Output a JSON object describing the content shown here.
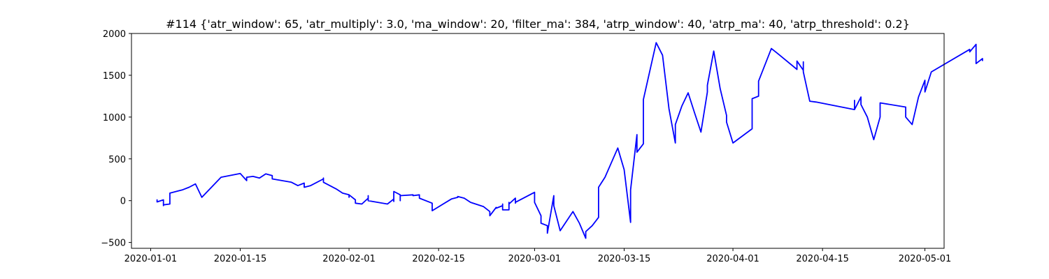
{
  "chart_data": {
    "type": "line",
    "title": "#114 {'atr_window': 65, 'atr_multiply': 3.0, 'ma_window': 20, 'filter_ma': 384, 'atrp_window': 40, 'atrp_ma': 40, 'atrp_threshold': 0.2}",
    "xlabel": "",
    "ylabel": "",
    "x_type": "date",
    "xlim": [
      "2019-12-29",
      "2020-05-04"
    ],
    "ylim": [
      -570,
      2000
    ],
    "x_ticks": [
      "2020-01-01",
      "2020-01-15",
      "2020-02-01",
      "2020-02-15",
      "2020-03-01",
      "2020-03-15",
      "2020-04-01",
      "2020-04-15",
      "2020-05-01"
    ],
    "y_ticks": [
      -500,
      0,
      500,
      1000,
      1500,
      2000
    ],
    "grid": false,
    "series": [
      {
        "color": "#0000ff",
        "points": [
          [
            "2020-01-02",
            0
          ],
          [
            "2020-01-02",
            10
          ],
          [
            "2020-01-02",
            -15
          ],
          [
            "2020-01-03",
            10
          ],
          [
            "2020-01-03",
            -60
          ],
          [
            "2020-01-03",
            -20
          ],
          [
            "2020-01-03",
            -50
          ],
          [
            "2020-01-04",
            -40
          ],
          [
            "2020-01-04",
            90
          ],
          [
            "2020-01-06",
            130
          ],
          [
            "2020-01-07",
            160
          ],
          [
            "2020-01-08",
            200
          ],
          [
            "2020-01-09",
            40
          ],
          [
            "2020-01-12",
            280
          ],
          [
            "2020-01-15",
            325
          ],
          [
            "2020-01-16",
            240
          ],
          [
            "2020-01-16",
            280
          ],
          [
            "2020-01-17",
            290
          ],
          [
            "2020-01-18",
            270
          ],
          [
            "2020-01-19",
            320
          ],
          [
            "2020-01-20",
            300
          ],
          [
            "2020-01-20",
            260
          ],
          [
            "2020-01-23",
            220
          ],
          [
            "2020-01-24",
            180
          ],
          [
            "2020-01-25",
            210
          ],
          [
            "2020-01-25",
            160
          ],
          [
            "2020-01-26",
            180
          ],
          [
            "2020-01-28",
            260
          ],
          [
            "2020-01-28",
            270
          ],
          [
            "2020-01-28",
            220
          ],
          [
            "2020-01-30",
            140
          ],
          [
            "2020-01-31",
            90
          ],
          [
            "2020-01-31",
            90
          ],
          [
            "2020-02-01",
            70
          ],
          [
            "2020-02-01",
            40
          ],
          [
            "2020-02-01",
            70
          ],
          [
            "2020-02-02",
            10
          ],
          [
            "2020-02-02",
            -30
          ],
          [
            "2020-02-03",
            -40
          ],
          [
            "2020-02-03",
            -40
          ],
          [
            "2020-02-04",
            30
          ],
          [
            "2020-02-04",
            60
          ],
          [
            "2020-02-04",
            0
          ],
          [
            "2020-02-07",
            -40
          ],
          [
            "2020-02-08",
            20
          ],
          [
            "2020-02-08",
            -10
          ],
          [
            "2020-02-08",
            110
          ],
          [
            "2020-02-09",
            70
          ],
          [
            "2020-02-09",
            20
          ],
          [
            "2020-02-09",
            0
          ],
          [
            "2020-02-09",
            60
          ],
          [
            "2020-02-11",
            70
          ],
          [
            "2020-02-11",
            60
          ],
          [
            "2020-02-12",
            70
          ],
          [
            "2020-02-12",
            30
          ],
          [
            "2020-02-14",
            -30
          ],
          [
            "2020-02-14",
            -120
          ],
          [
            "2020-02-17",
            20
          ],
          [
            "2020-02-18",
            40
          ],
          [
            "2020-02-18",
            50
          ],
          [
            "2020-02-19",
            30
          ],
          [
            "2020-02-20",
            -20
          ],
          [
            "2020-02-22",
            -70
          ],
          [
            "2020-02-23",
            -130
          ],
          [
            "2020-02-23",
            -180
          ],
          [
            "2020-02-24",
            -80
          ],
          [
            "2020-02-24",
            -90
          ],
          [
            "2020-02-25",
            -60
          ],
          [
            "2020-02-25",
            -40
          ],
          [
            "2020-02-25",
            -110
          ],
          [
            "2020-02-26",
            -110
          ],
          [
            "2020-02-26",
            -20
          ],
          [
            "2020-02-26",
            -40
          ],
          [
            "2020-02-27",
            30
          ],
          [
            "2020-02-27",
            -30
          ],
          [
            "2020-02-27",
            -20
          ],
          [
            "2020-03-01",
            100
          ],
          [
            "2020-03-01",
            0
          ],
          [
            "2020-03-01",
            -20
          ],
          [
            "2020-03-02",
            -180
          ],
          [
            "2020-03-02",
            -220
          ],
          [
            "2020-03-02",
            -270
          ],
          [
            "2020-03-03",
            -300
          ],
          [
            "2020-03-03",
            -390
          ],
          [
            "2020-03-04",
            60
          ],
          [
            "2020-03-04",
            -60
          ],
          [
            "2020-03-05",
            -360
          ],
          [
            "2020-03-07",
            -130
          ],
          [
            "2020-03-08",
            -270
          ],
          [
            "2020-03-09",
            -450
          ],
          [
            "2020-03-09",
            -370
          ],
          [
            "2020-03-10",
            -300
          ],
          [
            "2020-03-11",
            -200
          ],
          [
            "2020-03-11",
            160
          ],
          [
            "2020-03-12",
            280
          ],
          [
            "2020-03-14",
            630
          ],
          [
            "2020-03-15",
            370
          ],
          [
            "2020-03-16",
            -260
          ],
          [
            "2020-03-16",
            130
          ],
          [
            "2020-03-17",
            790
          ],
          [
            "2020-03-17",
            580
          ],
          [
            "2020-03-18",
            680
          ],
          [
            "2020-03-18",
            1210
          ],
          [
            "2020-03-20",
            1890
          ],
          [
            "2020-03-21",
            1740
          ],
          [
            "2020-03-22",
            1100
          ],
          [
            "2020-03-23",
            690
          ],
          [
            "2020-03-23",
            910
          ],
          [
            "2020-03-24",
            1130
          ],
          [
            "2020-03-25",
            1290
          ],
          [
            "2020-03-26",
            1050
          ],
          [
            "2020-03-27",
            820
          ],
          [
            "2020-03-28",
            1300
          ],
          [
            "2020-03-28",
            1380
          ],
          [
            "2020-03-29",
            1790
          ],
          [
            "2020-03-30",
            1340
          ],
          [
            "2020-03-31",
            1020
          ],
          [
            "2020-03-31",
            940
          ],
          [
            "2020-04-01",
            690
          ],
          [
            "2020-04-04",
            860
          ],
          [
            "2020-04-04",
            1220
          ],
          [
            "2020-04-05",
            1250
          ],
          [
            "2020-04-05",
            1430
          ],
          [
            "2020-04-07",
            1820
          ],
          [
            "2020-04-08",
            1760
          ],
          [
            "2020-04-11",
            1570
          ],
          [
            "2020-04-11",
            1670
          ],
          [
            "2020-04-12",
            1560
          ],
          [
            "2020-04-12",
            1660
          ],
          [
            "2020-04-12",
            1540
          ],
          [
            "2020-04-13",
            1190
          ],
          [
            "2020-04-14",
            1180
          ],
          [
            "2020-04-20",
            1090
          ],
          [
            "2020-04-20",
            1200
          ],
          [
            "2020-04-20",
            1090
          ],
          [
            "2020-04-21",
            1240
          ],
          [
            "2020-04-21",
            1150
          ],
          [
            "2020-04-22",
            1000
          ],
          [
            "2020-04-23",
            730
          ],
          [
            "2020-04-24",
            1000
          ],
          [
            "2020-04-24",
            1170
          ],
          [
            "2020-04-28",
            1120
          ],
          [
            "2020-04-28",
            1000
          ],
          [
            "2020-04-29",
            910
          ],
          [
            "2020-04-30",
            1240
          ],
          [
            "2020-05-01",
            1440
          ],
          [
            "2020-05-01",
            1300
          ],
          [
            "2020-05-02",
            1540
          ],
          [
            "2020-05-08",
            1810
          ],
          [
            "2020-05-08",
            1780
          ],
          [
            "2020-05-09",
            1870
          ],
          [
            "2020-05-09",
            1760
          ],
          [
            "2020-05-09",
            1640
          ],
          [
            "2020-05-10",
            1700
          ],
          [
            "2020-05-10",
            1670
          ]
        ]
      }
    ]
  }
}
